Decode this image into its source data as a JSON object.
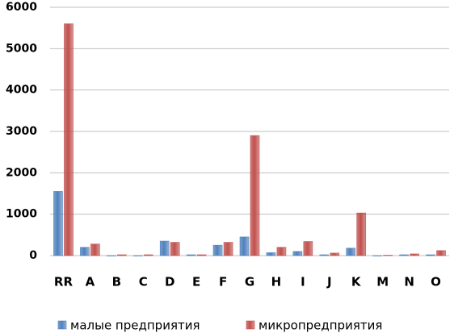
{
  "chart_data": {
    "type": "bar",
    "categories": [
      "RR",
      "A",
      "B",
      "C",
      "D",
      "E",
      "F",
      "G",
      "H",
      "I",
      "J",
      "K",
      "M",
      "N",
      "O"
    ],
    "series": [
      {
        "name": "малые предприятия",
        "color": "#4f81bd",
        "values": [
          1550,
          200,
          0,
          0,
          350,
          20,
          250,
          450,
          70,
          100,
          20,
          180,
          0,
          20,
          20
        ]
      },
      {
        "name": "микропредприятия",
        "color": "#c0504d",
        "values": [
          5600,
          280,
          20,
          20,
          320,
          20,
          320,
          2900,
          200,
          340,
          60,
          1030,
          10,
          40,
          120
        ]
      }
    ],
    "ylim": [
      0,
      6000
    ],
    "yticks": [
      0,
      1000,
      2000,
      3000,
      4000,
      5000,
      6000
    ],
    "grid": true
  }
}
